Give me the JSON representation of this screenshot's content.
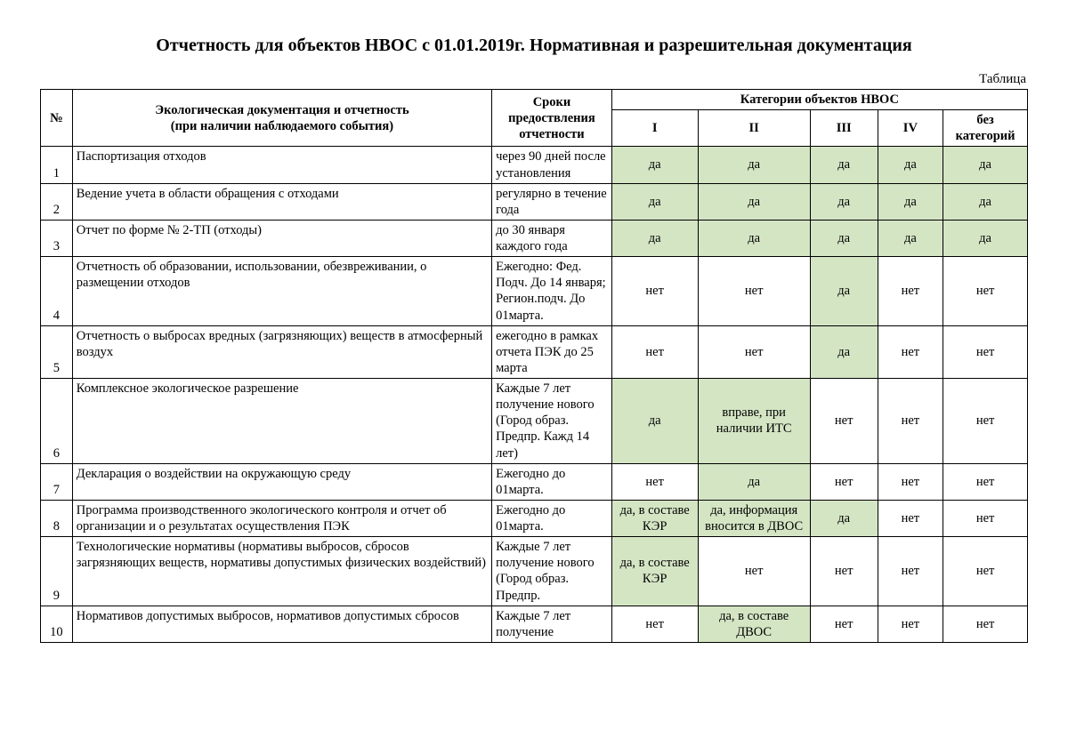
{
  "title": "Отчетность для объектов НВОС с 01.01.2019г. Нормативная и разрешительная документация",
  "table_label": "Таблица",
  "colors": {
    "yes_bg": "#d4e5c4",
    "border": "#000000",
    "text": "#000000",
    "page_bg": "#ffffff"
  },
  "fonts": {
    "family": "Times New Roman",
    "title_pt": 20,
    "body_pt": 15
  },
  "header": {
    "num": "№",
    "desc": "Экологическая документация и отчетность                                                   (при наличии наблюдаемого события)",
    "deadline": "Сроки предоствления отчетности",
    "cat_group": "Категории объектов НВОС",
    "cats": [
      "I",
      "II",
      "III",
      "IV",
      "без категорий"
    ]
  },
  "rows": [
    {
      "n": "1",
      "desc": "Паспортизация отходов",
      "deadline": "через 90 дней после установления",
      "cells": [
        {
          "v": "да",
          "yes": true
        },
        {
          "v": "да",
          "yes": true
        },
        {
          "v": "да",
          "yes": true
        },
        {
          "v": "да",
          "yes": true
        },
        {
          "v": "да",
          "yes": true
        }
      ]
    },
    {
      "n": "2",
      "desc": "Ведение учета в области обращения с отходами",
      "deadline": "регулярно в течение года",
      "cells": [
        {
          "v": "да",
          "yes": true
        },
        {
          "v": "да",
          "yes": true
        },
        {
          "v": "да",
          "yes": true
        },
        {
          "v": "да",
          "yes": true
        },
        {
          "v": "да",
          "yes": true
        }
      ]
    },
    {
      "n": "3",
      "desc": "Отчет по форме № 2-ТП (отходы)",
      "deadline": "до 30 января каждого года",
      "cells": [
        {
          "v": "да",
          "yes": true
        },
        {
          "v": "да",
          "yes": true
        },
        {
          "v": "да",
          "yes": true
        },
        {
          "v": "да",
          "yes": true
        },
        {
          "v": "да",
          "yes": true
        }
      ]
    },
    {
      "n": "4",
      "desc": "Отчетность об образовании, использовании, обезвреживании, о размещении отходов",
      "deadline": "Ежегодно: Фед. Подч. До 14 января; Регион.подч. До 01марта.",
      "cells": [
        {
          "v": "нет",
          "yes": false
        },
        {
          "v": "нет",
          "yes": false
        },
        {
          "v": "да",
          "yes": true
        },
        {
          "v": "нет",
          "yes": false
        },
        {
          "v": "нет",
          "yes": false
        }
      ]
    },
    {
      "n": "5",
      "desc": "Отчетность о выбросах вредных (загрязняющих) веществ в атмосферный воздух",
      "deadline": "ежегодно в рамках отчета ПЭК до 25 марта",
      "cells": [
        {
          "v": "нет",
          "yes": false
        },
        {
          "v": "нет",
          "yes": false
        },
        {
          "v": "да",
          "yes": true
        },
        {
          "v": "нет",
          "yes": false
        },
        {
          "v": "нет",
          "yes": false
        }
      ]
    },
    {
      "n": "6",
      "desc": "Комплексное экологическое разрешение",
      "deadline": "Каждые 7 лет получение нового (Город образ. Предпр. Кажд  14 лет)",
      "cells": [
        {
          "v": "да",
          "yes": true
        },
        {
          "v": "вправе, при наличии ИТС",
          "yes": true
        },
        {
          "v": "нет",
          "yes": false
        },
        {
          "v": "нет",
          "yes": false
        },
        {
          "v": "нет",
          "yes": false
        }
      ]
    },
    {
      "n": "7",
      "desc": "Декларация о воздействии на окружающую среду",
      "deadline": "Ежегодно до 01марта.",
      "cells": [
        {
          "v": "нет",
          "yes": false
        },
        {
          "v": "да",
          "yes": true
        },
        {
          "v": "нет",
          "yes": false
        },
        {
          "v": "нет",
          "yes": false
        },
        {
          "v": "нет",
          "yes": false
        }
      ]
    },
    {
      "n": "8",
      "desc": "Программа производственного экологического контроля и отчет об организации и о результатах осуществления ПЭК",
      "deadline": "Ежегодно до 01марта.",
      "cells": [
        {
          "v": "да, в составе КЭР",
          "yes": true
        },
        {
          "v": "да, информация вносится в ДВОС",
          "yes": true
        },
        {
          "v": "да",
          "yes": true
        },
        {
          "v": "нет",
          "yes": false
        },
        {
          "v": "нет",
          "yes": false
        }
      ]
    },
    {
      "n": "9",
      "desc": "Технологические нормативы (нормативы выбросов, сбросов загрязняющих веществ, нормативы допустимых физических воздействий)",
      "deadline": "Каждые 7 лет получение нового (Город образ. Предпр.",
      "cells": [
        {
          "v": "да, в составе КЭР",
          "yes": true
        },
        {
          "v": "нет",
          "yes": false
        },
        {
          "v": "нет",
          "yes": false
        },
        {
          "v": "нет",
          "yes": false
        },
        {
          "v": "нет",
          "yes": false
        }
      ]
    },
    {
      "n": "10",
      "desc": "Нормативов допустимых выбросов, нормативов допустимых сбросов",
      "deadline": "Каждые 7 лет получение",
      "cells": [
        {
          "v": "нет",
          "yes": false
        },
        {
          "v": "да, в составе ДВОС",
          "yes": true
        },
        {
          "v": "нет",
          "yes": false
        },
        {
          "v": "нет",
          "yes": false
        },
        {
          "v": "нет",
          "yes": false
        }
      ]
    }
  ]
}
